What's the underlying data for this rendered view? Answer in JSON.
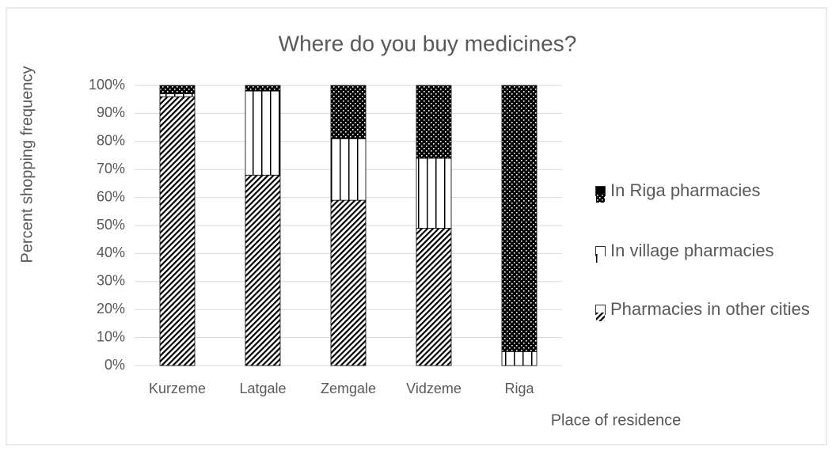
{
  "chart_data": {
    "type": "stacked-bar",
    "title": "Where do you buy medicines?",
    "x_label": "Place of residence",
    "y_label": "Percent shopping frequency",
    "categories": [
      "Kurzeme",
      "Latgale",
      "Zemgale",
      "Vidzeme",
      "Riga"
    ],
    "series": [
      {
        "name": "Pharmacies in other cities",
        "color": "#000000",
        "pattern": "diagonal",
        "values": [
          96,
          68,
          59,
          49,
          0
        ]
      },
      {
        "name": "In village pharmacies",
        "color": "#000000",
        "pattern": "vertical",
        "values": [
          1,
          30,
          22,
          25,
          5
        ]
      },
      {
        "name": "In Riga pharmacies",
        "color": "#000000",
        "pattern": "dots",
        "values": [
          3,
          2,
          19,
          26,
          95
        ]
      }
    ],
    "ylim": [
      0,
      100
    ],
    "yticks": [
      {
        "value": 0,
        "label": "0%"
      },
      {
        "value": 10,
        "label": "10%"
      },
      {
        "value": 20,
        "label": "20%"
      },
      {
        "value": 30,
        "label": "30%"
      },
      {
        "value": 40,
        "label": "40%"
      },
      {
        "value": 50,
        "label": "50%"
      },
      {
        "value": 60,
        "label": "60%"
      },
      {
        "value": 70,
        "label": "70%"
      },
      {
        "value": 80,
        "label": "80%"
      },
      {
        "value": 90,
        "label": "90%"
      },
      {
        "value": 100,
        "label": "100%"
      }
    ],
    "grid": true,
    "legend_position": "right"
  }
}
